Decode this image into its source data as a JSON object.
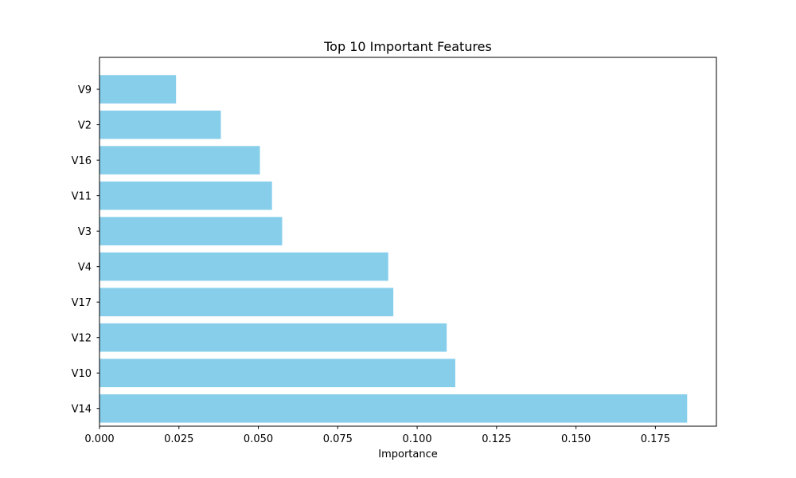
{
  "chart_data": {
    "type": "bar",
    "orientation": "horizontal",
    "title": "Top 10 Important Features",
    "xlabel": "Importance",
    "ylabel": "",
    "categories": [
      "V14",
      "V10",
      "V12",
      "V17",
      "V4",
      "V3",
      "V11",
      "V16",
      "V2",
      "V9"
    ],
    "values": [
      0.185,
      0.112,
      0.1093,
      0.0925,
      0.0909,
      0.0575,
      0.0543,
      0.0505,
      0.0382,
      0.0241
    ],
    "xlim": [
      0.0,
      0.1942
    ],
    "xticks": [
      "0.000",
      "0.025",
      "0.050",
      "0.075",
      "0.100",
      "0.125",
      "0.150",
      "0.175"
    ],
    "grid": false,
    "legend": "none",
    "bar_color": "#87ceeb"
  }
}
